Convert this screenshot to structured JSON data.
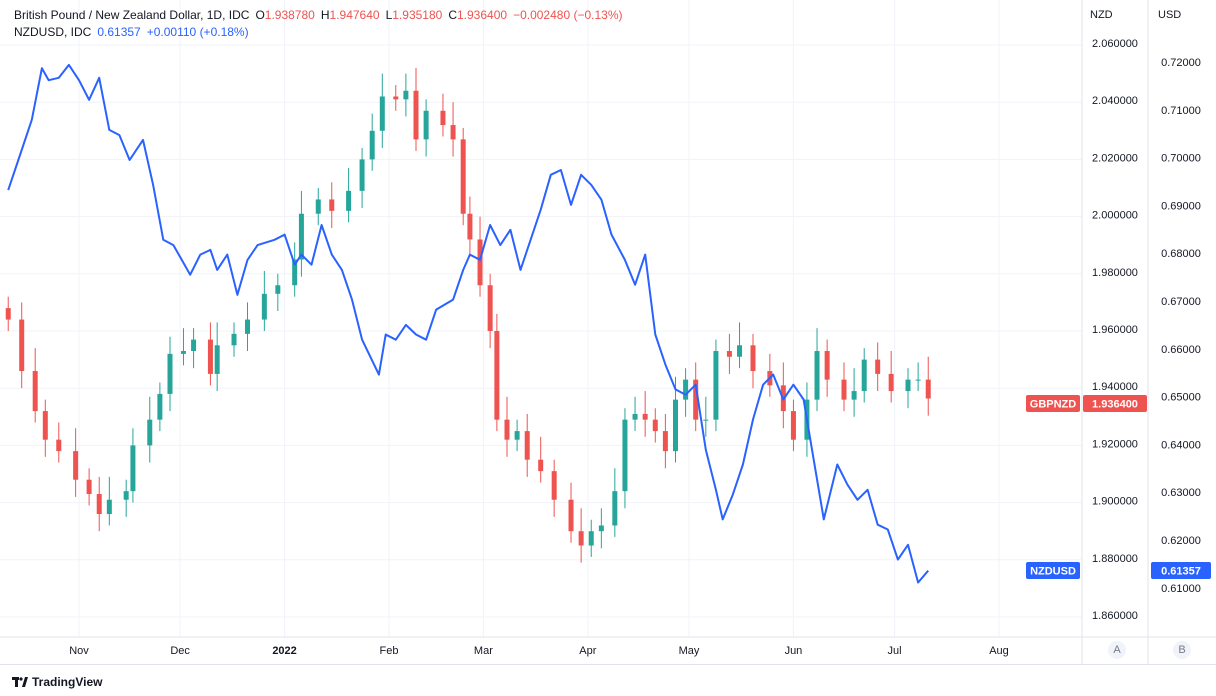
{
  "legend": {
    "main_title": "British Pound / New Zealand Dollar, 1D, IDC",
    "o_label": "O",
    "o": "1.938780",
    "h_label": "H",
    "h": "1.947640",
    "l_label": "L",
    "l": "1.935180",
    "c_label": "C",
    "c": "1.936400",
    "change": "−0.002480 (−0.13%)",
    "second_title": "NZDUSD, IDC",
    "second_value": "0.61357",
    "second_change": "+0.00110 (+0.18%)"
  },
  "axes": {
    "left_scale_title": "NZD",
    "right_scale_title": "USD",
    "left_btn": "A",
    "right_btn": "B"
  },
  "badges": {
    "gbpnzd_label": "GBPNZD",
    "gbpnzd_value": "1.936400",
    "nzdusd_label": "NZDUSD",
    "nzdusd_value": "0.61357"
  },
  "colors": {
    "up": "#26a69a",
    "down": "#ef5350",
    "line": "#2962ff",
    "grid": "#f0f3fa"
  },
  "footer": {
    "brand": "TradingView"
  },
  "chart_data": {
    "type": "candlestick+line",
    "x_unit": "days since 2021-11-01",
    "x_ticks": [
      {
        "day": 0,
        "label": "Nov"
      },
      {
        "day": 30,
        "label": "Dec"
      },
      {
        "day": 61,
        "label": "2022"
      },
      {
        "day": 92,
        "label": "Feb"
      },
      {
        "day": 120,
        "label": "Mar"
      },
      {
        "day": 151,
        "label": "Apr"
      },
      {
        "day": 181,
        "label": "May"
      },
      {
        "day": 212,
        "label": "Jun"
      },
      {
        "day": 242,
        "label": "Jul"
      },
      {
        "day": 273,
        "label": "Aug"
      }
    ],
    "left_axis": {
      "ylim": [
        1.855,
        2.065
      ],
      "ticks": [
        "2.060000",
        "2.040000",
        "2.020000",
        "2.000000",
        "1.980000",
        "1.960000",
        "1.940000",
        "1.920000",
        "1.900000",
        "1.880000",
        "1.860000"
      ]
    },
    "right_axis": {
      "ylim": [
        0.6057,
        0.7246
      ],
      "ticks": [
        "0.72000",
        "0.71000",
        "0.70000",
        "0.69000",
        "0.68000",
        "0.67000",
        "0.66000",
        "0.65000",
        "0.64000",
        "0.63000",
        "0.62000",
        "0.61000"
      ]
    },
    "series": [
      {
        "name": "GBPNZD",
        "type": "candlestick",
        "axis": "left",
        "close": [
          [
            -21,
            1.964
          ],
          [
            -17,
            1.946
          ],
          [
            -13,
            1.932
          ],
          [
            -10,
            1.922
          ],
          [
            -6,
            1.918
          ],
          [
            -1,
            1.908
          ],
          [
            3,
            1.903
          ],
          [
            6,
            1.896
          ],
          [
            9,
            1.901
          ],
          [
            14,
            1.904
          ],
          [
            16,
            1.92
          ],
          [
            21,
            1.929
          ],
          [
            24,
            1.938
          ],
          [
            27,
            1.952
          ],
          [
            31,
            1.953
          ],
          [
            34,
            1.957
          ],
          [
            39,
            1.945
          ],
          [
            41,
            1.955
          ],
          [
            46,
            1.959
          ],
          [
            50,
            1.964
          ],
          [
            55,
            1.973
          ],
          [
            59,
            1.976
          ],
          [
            64,
            1.985
          ],
          [
            66,
            2.001
          ],
          [
            71,
            2.006
          ],
          [
            75,
            2.002
          ],
          [
            80,
            2.009
          ],
          [
            84,
            2.02
          ],
          [
            87,
            2.03
          ],
          [
            90,
            2.042
          ],
          [
            94,
            2.041
          ],
          [
            97,
            2.044
          ],
          [
            100,
            2.027
          ],
          [
            103,
            2.037
          ],
          [
            108,
            2.032
          ],
          [
            111,
            2.027
          ],
          [
            114,
            2.001
          ],
          [
            116,
            1.992
          ],
          [
            119,
            1.976
          ],
          [
            122,
            1.96
          ],
          [
            124,
            1.929
          ],
          [
            127,
            1.922
          ],
          [
            130,
            1.925
          ],
          [
            133,
            1.915
          ],
          [
            137,
            1.911
          ],
          [
            141,
            1.901
          ],
          [
            146,
            1.89
          ],
          [
            149,
            1.885
          ],
          [
            152,
            1.89
          ],
          [
            155,
            1.892
          ],
          [
            159,
            1.904
          ],
          [
            162,
            1.929
          ],
          [
            165,
            1.931
          ],
          [
            168,
            1.929
          ],
          [
            171,
            1.925
          ],
          [
            174,
            1.918
          ],
          [
            177,
            1.936
          ],
          [
            180,
            1.943
          ],
          [
            183,
            1.929
          ],
          [
            186,
            1.929
          ],
          [
            189,
            1.953
          ],
          [
            193,
            1.951
          ],
          [
            196,
            1.955
          ],
          [
            200,
            1.946
          ],
          [
            205,
            1.941
          ],
          [
            209,
            1.932
          ],
          [
            212,
            1.922
          ],
          [
            216,
            1.936
          ],
          [
            219,
            1.953
          ],
          [
            222,
            1.943
          ],
          [
            227,
            1.936
          ],
          [
            230,
            1.939
          ],
          [
            233,
            1.95
          ],
          [
            237,
            1.945
          ],
          [
            241,
            1.939
          ],
          [
            246,
            1.943
          ],
          [
            249,
            1.943
          ],
          [
            252,
            1.9364
          ]
        ]
      },
      {
        "name": "NZDUSD",
        "type": "line",
        "axis": "right",
        "points": [
          [
            -21,
            0.6932
          ],
          [
            -17,
            0.7016
          ],
          [
            -14,
            0.7079
          ],
          [
            -11,
            0.7187
          ],
          [
            -9,
            0.7162
          ],
          [
            -6,
            0.7167
          ],
          [
            -3,
            0.7194
          ],
          [
            0,
            0.7162
          ],
          [
            3,
            0.7121
          ],
          [
            6,
            0.7167
          ],
          [
            9,
            0.7058
          ],
          [
            12,
            0.7047
          ],
          [
            15,
            0.6995
          ],
          [
            19,
            0.7037
          ],
          [
            22,
            0.6943
          ],
          [
            25,
            0.6828
          ],
          [
            28,
            0.6817
          ],
          [
            33,
            0.6755
          ],
          [
            36,
            0.6797
          ],
          [
            39,
            0.6807
          ],
          [
            41,
            0.6765
          ],
          [
            44,
            0.6797
          ],
          [
            47,
            0.6713
          ],
          [
            50,
            0.6786
          ],
          [
            53,
            0.6817
          ],
          [
            58,
            0.6828
          ],
          [
            61,
            0.6839
          ],
          [
            64,
            0.6776
          ],
          [
            66,
            0.6797
          ],
          [
            69,
            0.6776
          ],
          [
            72,
            0.6859
          ],
          [
            75,
            0.6797
          ],
          [
            78,
            0.6765
          ],
          [
            81,
            0.6703
          ],
          [
            84,
            0.6619
          ],
          [
            89,
            0.6546
          ],
          [
            91,
            0.663
          ],
          [
            94,
            0.6619
          ],
          [
            97,
            0.665
          ],
          [
            100,
            0.663
          ],
          [
            103,
            0.6619
          ],
          [
            106,
            0.6682
          ],
          [
            111,
            0.6703
          ],
          [
            114,
            0.6765
          ],
          [
            116,
            0.6797
          ],
          [
            119,
            0.6786
          ],
          [
            122,
            0.6859
          ],
          [
            125,
            0.6817
          ],
          [
            128,
            0.6849
          ],
          [
            131,
            0.6765
          ],
          [
            134,
            0.6828
          ],
          [
            137,
            0.6891
          ],
          [
            140,
            0.6964
          ],
          [
            143,
            0.6974
          ],
          [
            146,
            0.6901
          ],
          [
            149,
            0.6964
          ],
          [
            152,
            0.6943
          ],
          [
            155,
            0.6912
          ],
          [
            158,
            0.6839
          ],
          [
            162,
            0.6786
          ],
          [
            165,
            0.6734
          ],
          [
            168,
            0.6797
          ],
          [
            171,
            0.663
          ],
          [
            174,
            0.6567
          ],
          [
            177,
            0.6515
          ],
          [
            180,
            0.6504
          ],
          [
            183,
            0.6525
          ],
          [
            186,
            0.6389
          ],
          [
            189,
            0.6305
          ],
          [
            191,
            0.6243
          ],
          [
            194,
            0.6295
          ],
          [
            197,
            0.6358
          ],
          [
            200,
            0.6452
          ],
          [
            203,
            0.6525
          ],
          [
            206,
            0.6546
          ],
          [
            209,
            0.6494
          ],
          [
            212,
            0.6525
          ],
          [
            215,
            0.6494
          ],
          [
            218,
            0.6368
          ],
          [
            221,
            0.6243
          ],
          [
            225,
            0.6358
          ],
          [
            228,
            0.6316
          ],
          [
            231,
            0.6284
          ],
          [
            234,
            0.6305
          ],
          [
            237,
            0.6232
          ],
          [
            240,
            0.6222
          ],
          [
            243,
            0.6159
          ],
          [
            246,
            0.619
          ],
          [
            249,
            0.6111
          ],
          [
            252,
            0.61357
          ]
        ]
      }
    ]
  }
}
